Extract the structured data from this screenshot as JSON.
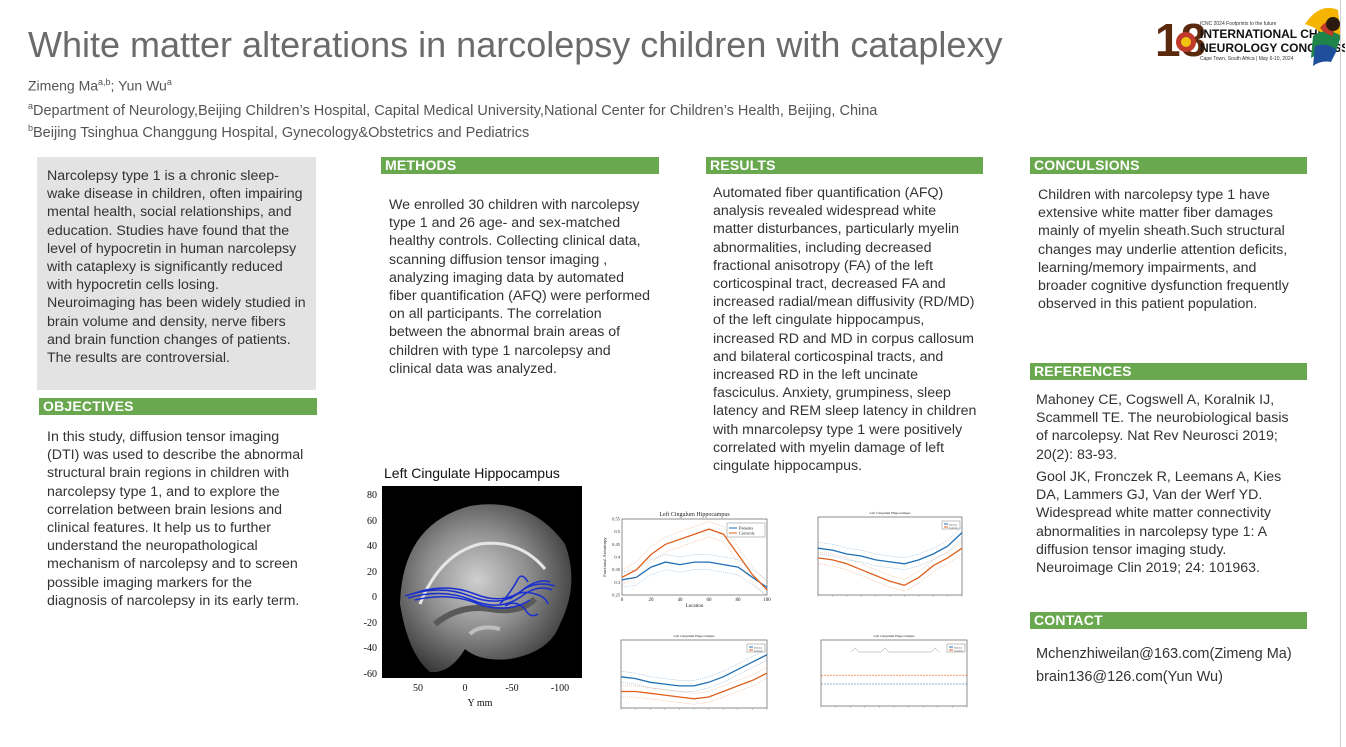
{
  "title": "White matter alterations in narcolepsy children with cataplexy",
  "authors": "Zimeng Ma",
  "authors_sup1": "a,b",
  "authors_sep": "; Yun Wu",
  "authors_sup2": "a",
  "affiliations": [
    {
      "sup": "a",
      "text": "Department of Neurology,Beijing Children’s Hospital, Capital Medical University,National Center for Children’s Health, Beijing, China"
    },
    {
      "sup": "b",
      "text": "Beijing Tsinghua Changgung Hospital, Gynecology&Obstetrics and Pediatrics"
    }
  ],
  "logo": {
    "number": "18",
    "tagline": "ICNC 2024 Footprints to the future",
    "line1": "INTERNATIONAL CHILD",
    "line2": "NEUROLOGY CONGRESS",
    "line3": "Cape Town, South Africa | May 6-10, 2024"
  },
  "intro": "Narcolepsy type 1 is a chronic sleep-wake disease in children, often impairing mental health, social relationships, and education. Studies have found that the level of hypocretin in human narcolepsy with cataplexy is significantly reduced with hypocretin cells losing. Neuroimaging has been widely studied in brain volume and density, nerve fibers and brain function changes of patients. The results are controversial.",
  "objectives": {
    "heading": "OBJECTIVES",
    "text": "In this study, diffusion tensor imaging (DTI)  was used to describe the abnormal structural brain regions in children with narcolepsy type 1, and to explore the correlation between brain lesions and clinical features. It help us to further understand the neuropathological mechanism of narcolepsy and to screen possible imaging markers for the diagnosis of narcolepsy in its early term."
  },
  "methods": {
    "heading": "METHODS",
    "text": "We enrolled 30 children with narcolepsy type 1 and 26 age- and sex-matched healthy controls. Collecting clinical data, scanning diffusion tensor imaging , analyzing imaging data by automated fiber quantification (AFQ)  were performed on all participants.  The correlation between the abnormal brain areas of children with type 1 narcolepsy and clinical data was analyzed."
  },
  "results": {
    "heading": "RESULTS",
    "text": "Automated fiber quantification (AFQ) analysis revealed widespread white matter disturbances, particularly myelin abnormalities, including decreased fractional anisotropy (FA) of the left corticospinal tract, decreased FA and increased radial/mean diffusivity (RD/MD) of the left cingulate hippocampus, increased RD and MD in corpus callosum and bilateral corticospinal tracts, and increased RD in the left uncinate fasciculus. Anxiety, grumpiness, sleep latency and REM sleep latency in children with mnarcolepsy type 1 were positively correlated with myelin damage of left cingulate hippocampus."
  },
  "conclusions": {
    "heading": "CONCULSIONS",
    "text": "Children with narcolepsy type 1 have extensive white matter fiber damages mainly of myelin sheath.Such structural changes may underlie attention deficits, learning/memory impairments, and broader cognitive dysfunction frequently observed in this patient population."
  },
  "references": {
    "heading": "REFERENCES",
    "items": [
      "Mahoney CE, Cogswell A, Koralnik IJ, Scammell TE. The neurobiological basis of narcolepsy. Nat Rev Neurosci 2019; 20(2): 83-93.",
      "Gool JK, Fronczek R, Leemans A, Kies DA, Lammers GJ, Van der Werf YD. Widespread white matter connectivity abnormalities in narcolepsy type 1: A diffusion tensor imaging study. Neuroimage Clin 2019; 24: 101963."
    ]
  },
  "contact": {
    "heading": "CONTACT",
    "lines": [
      "Mchenzhiweilan@163.com(Zimeng Ma)",
      "brain136@126.com(Yun Wu)"
    ]
  },
  "brain_figure": {
    "title": "Left Cingulate Hippocampus",
    "y_ticks": [
      "80",
      "60",
      "40",
      "20",
      "0",
      "-20",
      "-40",
      "-60"
    ],
    "x_ticks": [
      "50",
      "0",
      "-50",
      "-100"
    ],
    "xlabel": "Y mm"
  },
  "chart_data": [
    {
      "type": "line",
      "title": "Left Cingulum Hippocampus",
      "xlabel": "Location",
      "ylabel": "Fractional Anisotropy",
      "xlim": [
        0,
        100
      ],
      "ylim": [
        0.25,
        0.55
      ],
      "x_ticks": [
        "0",
        "20",
        "40",
        "60",
        "80",
        "100"
      ],
      "y_ticks": [
        "0.25",
        "0.3",
        "0.35",
        "0.4",
        "0.45",
        "0.5",
        "0.55"
      ],
      "x": [
        0,
        10,
        20,
        30,
        40,
        50,
        60,
        70,
        80,
        90,
        100
      ],
      "series": [
        {
          "name": "Patients",
          "color": "#1f6fb4",
          "values": [
            0.31,
            0.32,
            0.36,
            0.38,
            0.37,
            0.38,
            0.38,
            0.37,
            0.36,
            0.32,
            0.28
          ]
        },
        {
          "name": "Controls",
          "color": "#e0601c",
          "values": [
            0.32,
            0.35,
            0.41,
            0.45,
            0.47,
            0.49,
            0.51,
            0.49,
            0.41,
            0.33,
            0.27
          ]
        }
      ]
    },
    {
      "type": "line",
      "title": "Left Cingulum Hippocampus",
      "series": [
        {
          "name": "Patients",
          "color": "#1f6fb4",
          "values": [
            0.55,
            0.54,
            0.52,
            0.51,
            0.49,
            0.48,
            0.47,
            0.49,
            0.52,
            0.56,
            0.63
          ]
        },
        {
          "name": "Controls",
          "color": "#e0601c",
          "values": [
            0.5,
            0.49,
            0.47,
            0.44,
            0.41,
            0.38,
            0.36,
            0.4,
            0.46,
            0.5,
            0.55
          ]
        }
      ]
    },
    {
      "type": "line",
      "title": "Left Cingulum Hippocampus",
      "series": [
        {
          "name": "Patients",
          "color": "#1f6fb4",
          "values": [
            0.5,
            0.49,
            0.47,
            0.46,
            0.45,
            0.45,
            0.47,
            0.5,
            0.54,
            0.58,
            0.62
          ]
        },
        {
          "name": "Controls",
          "color": "#e0601c",
          "values": [
            0.42,
            0.42,
            0.41,
            0.4,
            0.39,
            0.38,
            0.39,
            0.42,
            0.45,
            0.48,
            0.52
          ]
        }
      ]
    },
    {
      "type": "line",
      "title": "Left Cingulum Hippocampus",
      "series": [
        {
          "name": "Patients",
          "color": "#1f6fb4",
          "values": [
            0.1,
            0.1,
            0.1,
            0.1,
            0.1,
            0.1,
            0.1,
            0.1,
            0.1,
            0.1,
            0.1
          ]
        },
        {
          "name": "Controls",
          "color": "#e0601c",
          "values": [
            0.12,
            0.12,
            0.12,
            0.12,
            0.12,
            0.12,
            0.12,
            0.12,
            0.12,
            0.12,
            0.12
          ]
        }
      ]
    }
  ]
}
